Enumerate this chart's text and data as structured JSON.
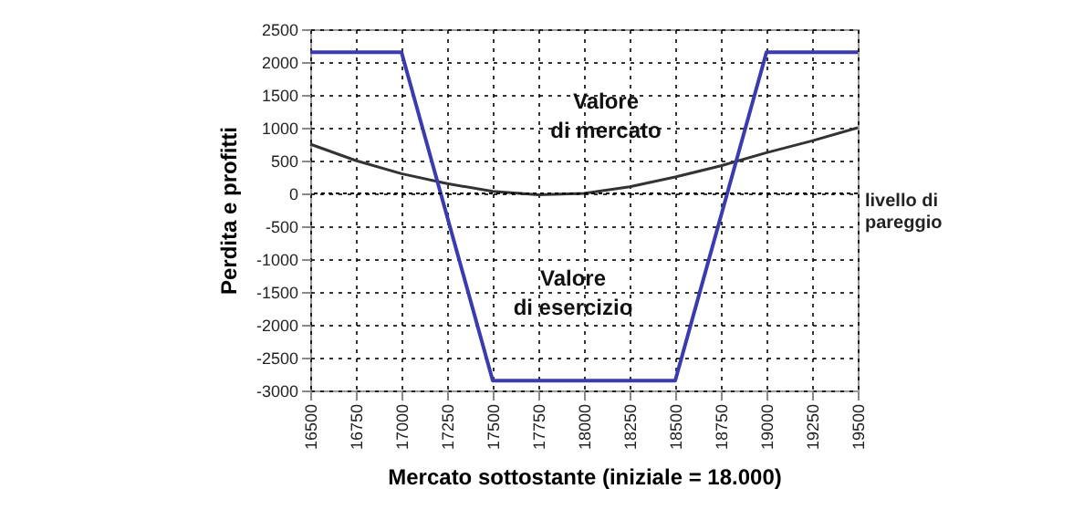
{
  "chart_data": {
    "type": "line",
    "xlabel": "Mercato sottostante (iniziale = 18.000)",
    "ylabel": "Perdita e profitti",
    "x": [
      16500,
      16750,
      17000,
      17250,
      17500,
      17750,
      18000,
      18250,
      18500,
      18750,
      19000,
      19250,
      19500
    ],
    "series": [
      {
        "color": "#333333",
        "values": [
          750,
          500,
          300,
          150,
          30,
          -20,
          0,
          100,
          250,
          420,
          620,
          800,
          1000
        ]
      },
      {
        "color": "#3b3bb0",
        "x": [
          16500,
          17000,
          17500,
          18500,
          19000,
          19500
        ],
        "values": [
          2150,
          2150,
          -2850,
          -2850,
          2150,
          2150
        ]
      }
    ],
    "xlim": [
      16500,
      19500
    ],
    "xticks": [
      16500,
      16750,
      17000,
      17250,
      17500,
      17750,
      18000,
      18250,
      18500,
      18750,
      19000,
      19250,
      19500
    ],
    "ylim": [
      -3000,
      2500
    ],
    "yticks": [
      -3000,
      -2500,
      -2000,
      -1500,
      -1000,
      -500,
      0,
      500,
      1000,
      1500,
      2000,
      2500
    ],
    "grid": true,
    "line_style": "solid",
    "marker": "none",
    "ref_lines": [
      {
        "axis": "y",
        "value": 0,
        "label": "livello di pareggio",
        "color": "#000000",
        "line_style": "dotted"
      }
    ],
    "annotations": [
      "Valore di mercato",
      "Valore di esercizio"
    ]
  }
}
